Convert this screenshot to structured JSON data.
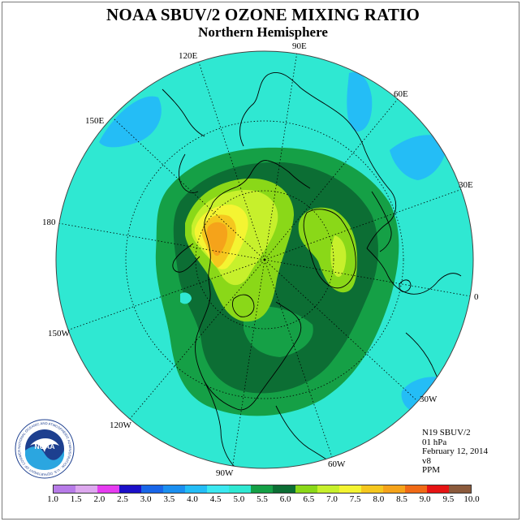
{
  "header": {
    "title": "NOAA SBUV/2 OZONE MIXING RATIO",
    "subtitle": "Northern Hemisphere"
  },
  "longitude_labels": [
    "90E",
    "60E",
    "30E",
    "0",
    "30W",
    "60W",
    "90W",
    "120W",
    "150W",
    "180",
    "150E",
    "120E"
  ],
  "info": {
    "satellite": "N19 SBUV/2",
    "level": "01 hPa",
    "date": "February 12, 2014",
    "version": "v8",
    "units": "PPM"
  },
  "colorbar": {
    "ticks": [
      "1.0",
      "1.5",
      "2.0",
      "2.5",
      "3.0",
      "3.5",
      "4.0",
      "4.5",
      "5.0",
      "5.5",
      "6.0",
      "6.5",
      "7.0",
      "7.5",
      "8.0",
      "8.5",
      "9.0",
      "9.5",
      "10.0"
    ],
    "colors": [
      "#b77be8",
      "#dda8ee",
      "#e63cf0",
      "#1c10c8",
      "#1966e8",
      "#1b8ff0",
      "#24bdf6",
      "#3ce8f0",
      "#2fe8d2",
      "#15a046",
      "#0c6e34",
      "#8ad818",
      "#c7f02c",
      "#f4f432",
      "#f5c71e",
      "#f5a31a",
      "#f06a16",
      "#e61414",
      "#8b5a3c"
    ]
  },
  "logo": {
    "name": "NOAA",
    "ring_text": "NATIONAL OCEANIC AND ATMOSPHERIC ADMINISTRATION · U.S. DEPARTMENT OF COMMERCE"
  }
}
